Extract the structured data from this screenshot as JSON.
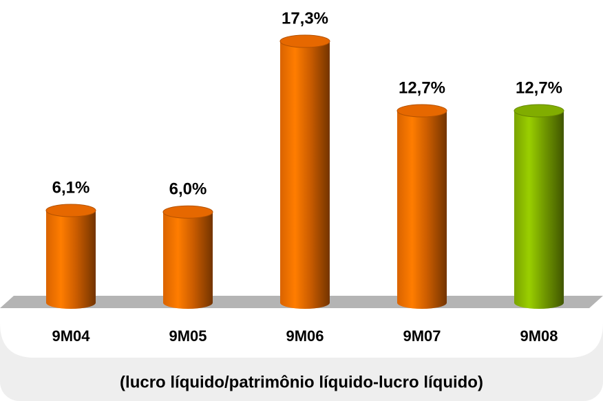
{
  "chart_data": {
    "type": "bar",
    "title": "(lucro líquido/patrimônio líquido-lucro líquido)",
    "categories": [
      "9M04",
      "9M05",
      "9M06",
      "9M07",
      "9M08"
    ],
    "values": [
      6.1,
      6.0,
      17.3,
      12.7,
      12.7
    ],
    "value_labels": [
      "6,1%",
      "6,0%",
      "17,3%",
      "12,7%",
      "12,7%"
    ],
    "colors": [
      "#ff7400",
      "#ff7400",
      "#ff7400",
      "#ff7400",
      "#8fc000"
    ]
  }
}
